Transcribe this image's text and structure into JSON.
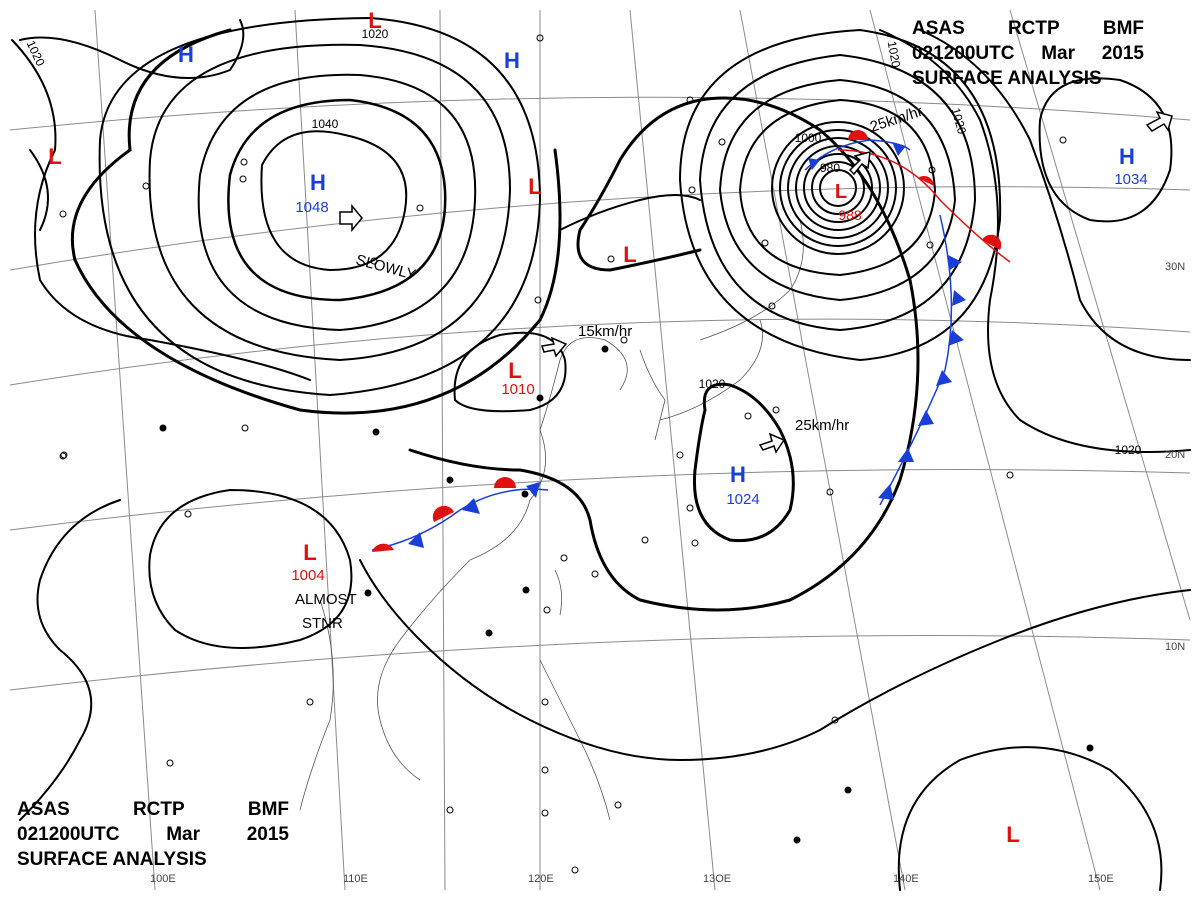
{
  "header": {
    "line1": [
      "ASAS",
      "RCTP",
      "BMF"
    ],
    "line2": [
      "021200UTC",
      "Mar",
      "2015"
    ],
    "line3": "SURFACE ANALYSIS"
  },
  "longitude_labels": [
    "110E",
    "120E",
    "13OE",
    "140E",
    "150E",
    "100E"
  ],
  "latitude_labels": [
    "30N",
    "20N",
    "10N"
  ],
  "pressure_centers": [
    {
      "type": "H",
      "value": "1048",
      "color": "#1a3fd8",
      "name": "high-mongolia"
    },
    {
      "type": "H",
      "value": "",
      "color": "#1a3fd8",
      "name": "high-north-west"
    },
    {
      "type": "H",
      "value": "",
      "color": "#1a3fd8",
      "name": "high-north-central"
    },
    {
      "type": "H",
      "value": "1034",
      "color": "#1a3fd8",
      "name": "high-north-east"
    },
    {
      "type": "H",
      "value": "1024",
      "color": "#1a3fd8",
      "name": "high-east-china-sea"
    },
    {
      "type": "L",
      "value": "988",
      "color": "#e01010",
      "name": "low-japan"
    },
    {
      "type": "L",
      "value": "1010",
      "color": "#e01010",
      "name": "low-central-china"
    },
    {
      "type": "L",
      "value": "1004",
      "color": "#e01010",
      "name": "low-indochina"
    },
    {
      "type": "L",
      "value": "",
      "color": "#e01010",
      "name": "low-west"
    },
    {
      "type": "L",
      "value": "",
      "color": "#e01010",
      "name": "low-north-top"
    },
    {
      "type": "L",
      "value": "",
      "color": "#e01010",
      "name": "low-north-china"
    },
    {
      "type": "L",
      "value": "",
      "color": "#e01010",
      "name": "low-korea"
    },
    {
      "type": "L",
      "value": "",
      "color": "#e01010",
      "name": "low-south-pacific"
    }
  ],
  "isobar_labels": [
    "1020",
    "1020",
    "1040",
    "1020",
    "1020",
    "1000",
    "980",
    "1020",
    "1020"
  ],
  "motion_labels": [
    "SLOWLY",
    "15km/hr",
    "25km/hr",
    "25km/hr",
    "ALMOST",
    "STNR"
  ],
  "colors": {
    "front_red": "#e01010",
    "front_blue": "#1a3fd8",
    "isobar": "#000000",
    "grid": "#8a8a8a"
  }
}
